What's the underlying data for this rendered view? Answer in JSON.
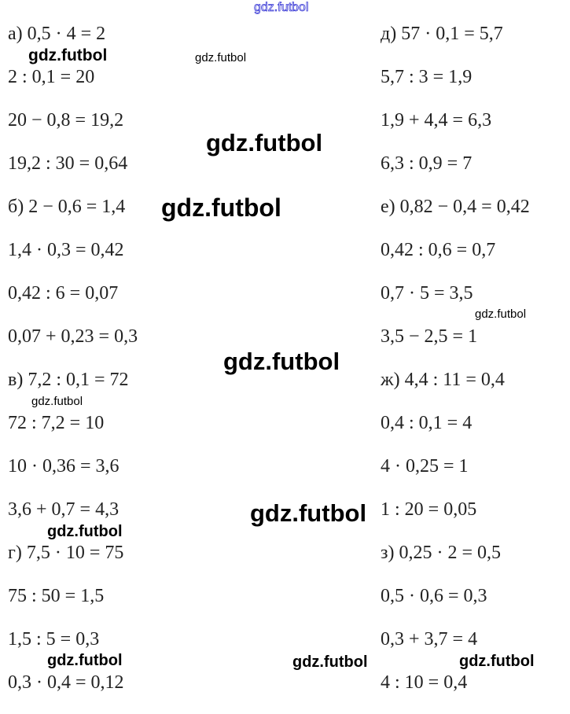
{
  "header_link": "gdz.futbol",
  "left_column": [
    "а) 0,5 · 4 = 2",
    "2 : 0,1 = 20",
    "20 − 0,8 = 19,2",
    "19,2 : 30 = 0,64",
    "б) 2 − 0,6 = 1,4",
    "1,4 · 0,3 = 0,42",
    "0,42 : 6 = 0,07",
    "0,07 + 0,23 = 0,3",
    "в) 7,2 : 0,1 = 72",
    "72 : 7,2 = 10",
    "10 · 0,36 = 3,6",
    "3,6 + 0,7 = 4,3",
    "г) 7,5 · 10 = 75",
    "75 : 50 = 1,5",
    "1,5 : 5 = 0,3",
    "0,3 · 0,4 = 0,12"
  ],
  "right_column": [
    "д) 57 · 0,1 = 5,7",
    "5,7 : 3 = 1,9",
    "1,9 + 4,4 = 6,3",
    "6,3 : 0,9 = 7",
    "е) 0,82 − 0,4 = 0,42",
    "0,42 : 0,6 = 0,7",
    "0,7 · 5 = 3,5",
    "3,5 − 2,5 = 1",
    "ж) 4,4 : 11 = 0,4",
    "0,4 : 0,1 = 4",
    "4 · 0,25 = 1",
    "1 : 20 = 0,05",
    "з) 0,25 · 2 = 0,5",
    "0,5 · 0,6 = 0,3",
    "0,3 + 3,7 = 4",
    "4 : 10 = 0,4"
  ],
  "watermarks": [
    "gdz.futbol",
    "gdz.futbol",
    "gdz.futbol",
    "gdz.futbol",
    "gdz.futbol",
    "gdz.futbol",
    "gdz.futbol",
    "gdz.futbol",
    "gdz.futbol",
    "gdz.futbol",
    "gdz.futbol",
    "gdz.futbol"
  ]
}
